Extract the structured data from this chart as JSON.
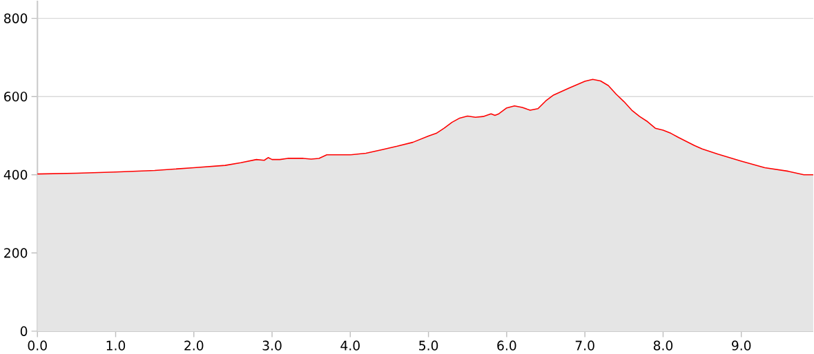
{
  "chart_data": {
    "type": "area",
    "x": [
      0,
      0.5,
      1.0,
      1.5,
      2.0,
      2.4,
      2.6,
      2.8,
      2.9,
      2.95,
      3.0,
      3.1,
      3.2,
      3.3,
      3.4,
      3.5,
      3.6,
      3.7,
      3.8,
      4.0,
      4.2,
      4.4,
      4.6,
      4.8,
      5.0,
      5.1,
      5.2,
      5.3,
      5.4,
      5.5,
      5.6,
      5.7,
      5.8,
      5.85,
      5.9,
      6.0,
      6.1,
      6.2,
      6.3,
      6.4,
      6.5,
      6.6,
      6.8,
      7.0,
      7.1,
      7.2,
      7.3,
      7.4,
      7.5,
      7.6,
      7.7,
      7.8,
      7.9,
      8.0,
      8.1,
      8.2,
      8.4,
      8.5,
      8.7,
      9.0,
      9.3,
      9.6,
      9.8,
      9.92
    ],
    "series": [
      {
        "color": "#ff0000",
        "values": [
          402,
          404,
          407,
          411,
          418,
          424,
          431,
          439,
          437,
          444,
          439,
          439,
          442,
          442,
          442,
          440,
          442,
          451,
          451,
          451,
          455,
          464,
          473,
          483,
          499,
          506,
          519,
          534,
          545,
          550,
          547,
          549,
          556,
          552,
          556,
          571,
          576,
          572,
          565,
          569,
          589,
          604,
          622,
          639,
          644,
          640,
          628,
          606,
          587,
          565,
          549,
          536,
          519,
          514,
          506,
          495,
          475,
          466,
          453,
          435,
          418,
          409,
          400,
          400
        ]
      }
    ],
    "xlim": [
      0,
      9.92
    ],
    "ylim": [
      0,
      845
    ],
    "xticks": [
      {
        "value": 0,
        "label": "0.0"
      },
      {
        "value": 1,
        "label": "1.0"
      },
      {
        "value": 2,
        "label": "2.0"
      },
      {
        "value": 3,
        "label": "3.0"
      },
      {
        "value": 4,
        "label": "4.0"
      },
      {
        "value": 5,
        "label": "5.0"
      },
      {
        "value": 6,
        "label": "6.0"
      },
      {
        "value": 7,
        "label": "7.0"
      },
      {
        "value": 8,
        "label": "8.0"
      },
      {
        "value": 9,
        "label": "9.0"
      }
    ],
    "yticks": [
      0,
      200,
      400,
      600,
      800
    ],
    "grid": "y"
  }
}
